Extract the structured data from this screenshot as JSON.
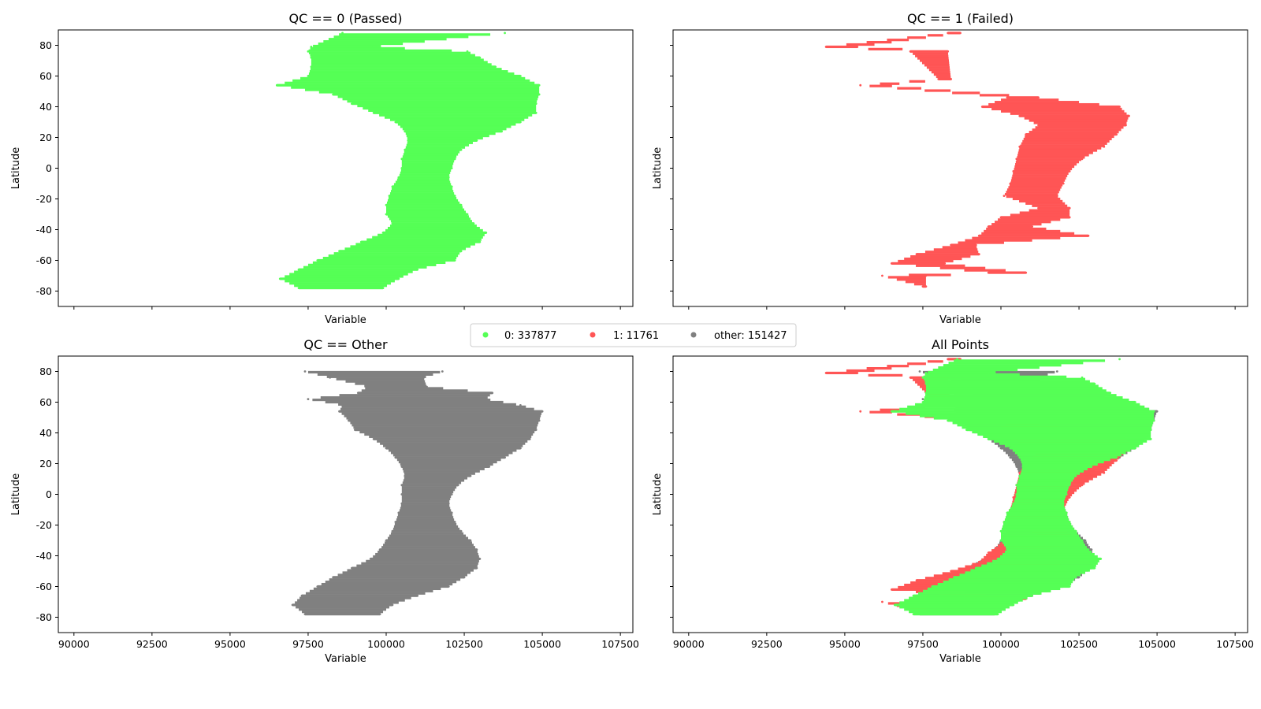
{
  "chart_data": [
    {
      "type": "scatter",
      "title": "QC == 0 (Passed)",
      "xlabel": "Variable",
      "ylabel": "Latitude",
      "xlim": [
        89500,
        107900
      ],
      "ylim": [
        -90,
        90
      ],
      "xticks": [
        90000,
        92500,
        95000,
        97500,
        100000,
        102500,
        105000,
        107500
      ],
      "yticks": [
        80,
        60,
        40,
        20,
        0,
        -20,
        -40,
        -60,
        -80
      ],
      "show_xtick_labels": false,
      "show_ytick_labels": true,
      "color": "#55ff55",
      "series": [
        {
          "label": "0",
          "color": "#55ff55",
          "profile": [
            {
              "lat": -78,
              "x": [
                97200,
                99900
              ]
            },
            {
              "lat": -72,
              "x": [
                96600,
                100400
              ]
            },
            {
              "lat": -66,
              "x": [
                97200,
                101000
              ]
            },
            {
              "lat": -60,
              "x": [
                97800,
                102200
              ]
            },
            {
              "lat": -54,
              "x": [
                98500,
                102400
              ]
            },
            {
              "lat": -48,
              "x": [
                99200,
                103000
              ]
            },
            {
              "lat": -42,
              "x": [
                99900,
                103200
              ]
            },
            {
              "lat": -36,
              "x": [
                100200,
                102800
              ]
            },
            {
              "lat": -30,
              "x": [
                100000,
                102600
              ]
            },
            {
              "lat": -24,
              "x": [
                100000,
                102400
              ]
            },
            {
              "lat": -18,
              "x": [
                100100,
                102200
              ]
            },
            {
              "lat": -12,
              "x": [
                100200,
                102100
              ]
            },
            {
              "lat": -6,
              "x": [
                100400,
                102000
              ]
            },
            {
              "lat": 0,
              "x": [
                100500,
                102100
              ]
            },
            {
              "lat": 6,
              "x": [
                100500,
                102200
              ]
            },
            {
              "lat": 12,
              "x": [
                100600,
                102400
              ]
            },
            {
              "lat": 18,
              "x": [
                100700,
                102900
              ]
            },
            {
              "lat": 24,
              "x": [
                100600,
                103700
              ]
            },
            {
              "lat": 30,
              "x": [
                100300,
                104300
              ]
            },
            {
              "lat": 36,
              "x": [
                99600,
                104800
              ]
            },
            {
              "lat": 42,
              "x": [
                98900,
                104800
              ]
            },
            {
              "lat": 48,
              "x": [
                98300,
                104900
              ]
            },
            {
              "lat": 54,
              "x": [
                96500,
                104900
              ]
            },
            {
              "lat": 60,
              "x": [
                97500,
                104300
              ]
            },
            {
              "lat": 66,
              "x": [
                97600,
                103500
              ]
            },
            {
              "lat": 72,
              "x": [
                97600,
                103000
              ]
            },
            {
              "lat": 76,
              "x": [
                97500,
                102600
              ]
            },
            {
              "lat": 79,
              "x": [
                97600,
                99600
              ]
            },
            {
              "lat": 88,
              "x": [
                98600,
                103800
              ]
            }
          ]
        }
      ]
    },
    {
      "type": "scatter",
      "title": "QC == 1 (Failed)",
      "xlabel": "Variable",
      "ylabel": "Latitude",
      "xlim": [
        89500,
        107900
      ],
      "ylim": [
        -90,
        90
      ],
      "xticks": [
        90000,
        92500,
        95000,
        97500,
        100000,
        102500,
        105000,
        107500
      ],
      "yticks": [
        80,
        60,
        40,
        20,
        0,
        -20,
        -40,
        -60,
        -80
      ],
      "show_xtick_labels": false,
      "show_ytick_labels": false,
      "color": "#ff5555",
      "series": [
        {
          "label": "1",
          "color": "#ff5555",
          "profile": [
            {
              "lat": -77,
              "x": [
                97500,
                97600
              ]
            },
            {
              "lat": -70,
              "x": [
                96200,
                97600
              ]
            },
            {
              "lat": -68,
              "x": [
                99600,
                100800
              ]
            },
            {
              "lat": -62,
              "x": [
                96500,
                98200
              ]
            },
            {
              "lat": -56,
              "x": [
                97300,
                99300
              ]
            },
            {
              "lat": -50,
              "x": [
                98400,
                99200
              ]
            },
            {
              "lat": -44,
              "x": [
                99300,
                102800
              ]
            },
            {
              "lat": -38,
              "x": [
                99600,
                101000
              ]
            },
            {
              "lat": -32,
              "x": [
                100000,
                102200
              ]
            },
            {
              "lat": -26,
              "x": [
                101200,
                102200
              ]
            },
            {
              "lat": -18,
              "x": [
                100100,
                101800
              ]
            },
            {
              "lat": -10,
              "x": [
                100300,
                102000
              ]
            },
            {
              "lat": -2,
              "x": [
                100400,
                102200
              ]
            },
            {
              "lat": 6,
              "x": [
                100500,
                102600
              ]
            },
            {
              "lat": 14,
              "x": [
                100600,
                103300
              ]
            },
            {
              "lat": 22,
              "x": [
                100800,
                103700
              ]
            },
            {
              "lat": 28,
              "x": [
                101200,
                104000
              ]
            },
            {
              "lat": 34,
              "x": [
                100600,
                104100
              ]
            },
            {
              "lat": 40,
              "x": [
                99400,
                103800
              ]
            },
            {
              "lat": 46,
              "x": [
                100200,
                101200
              ]
            },
            {
              "lat": 54,
              "x": [
                95500,
                96200
              ]
            },
            {
              "lat": 58,
              "x": [
                98000,
                98400
              ]
            },
            {
              "lat": 76,
              "x": [
                97100,
                98300
              ]
            },
            {
              "lat": 79,
              "x": [
                94400,
                95400
              ]
            },
            {
              "lat": 88,
              "x": [
                98300,
                98700
              ]
            }
          ]
        }
      ]
    },
    {
      "type": "scatter",
      "title": "QC == Other",
      "xlabel": "Variable",
      "ylabel": "Latitude",
      "xlim": [
        89500,
        107900
      ],
      "ylim": [
        -90,
        90
      ],
      "xticks": [
        90000,
        92500,
        95000,
        97500,
        100000,
        102500,
        105000,
        107500
      ],
      "yticks": [
        80,
        60,
        40,
        20,
        0,
        -20,
        -40,
        -60,
        -80
      ],
      "show_xtick_labels": true,
      "show_ytick_labels": true,
      "color": "#808080",
      "series": [
        {
          "label": "other",
          "color": "#808080",
          "profile": [
            {
              "lat": -78,
              "x": [
                97400,
                99800
              ]
            },
            {
              "lat": -72,
              "x": [
                97000,
                100200
              ]
            },
            {
              "lat": -66,
              "x": [
                97300,
                101000
              ]
            },
            {
              "lat": -60,
              "x": [
                97800,
                102000
              ]
            },
            {
              "lat": -54,
              "x": [
                98300,
                102500
              ]
            },
            {
              "lat": -48,
              "x": [
                98900,
                102900
              ]
            },
            {
              "lat": -42,
              "x": [
                99500,
                103000
              ]
            },
            {
              "lat": -36,
              "x": [
                99800,
                102900
              ]
            },
            {
              "lat": -30,
              "x": [
                100000,
                102700
              ]
            },
            {
              "lat": -24,
              "x": [
                100200,
                102400
              ]
            },
            {
              "lat": -18,
              "x": [
                100300,
                102200
              ]
            },
            {
              "lat": -12,
              "x": [
                100400,
                102100
              ]
            },
            {
              "lat": -6,
              "x": [
                100500,
                102000
              ]
            },
            {
              "lat": 0,
              "x": [
                100500,
                102100
              ]
            },
            {
              "lat": 6,
              "x": [
                100500,
                102300
              ]
            },
            {
              "lat": 12,
              "x": [
                100600,
                102700
              ]
            },
            {
              "lat": 18,
              "x": [
                100500,
                103300
              ]
            },
            {
              "lat": 24,
              "x": [
                100300,
                103800
              ]
            },
            {
              "lat": 30,
              "x": [
                100000,
                104300
              ]
            },
            {
              "lat": 36,
              "x": [
                99600,
                104600
              ]
            },
            {
              "lat": 42,
              "x": [
                99000,
                104800
              ]
            },
            {
              "lat": 48,
              "x": [
                98800,
                104900
              ]
            },
            {
              "lat": 54,
              "x": [
                98500,
                105000
              ]
            },
            {
              "lat": 58,
              "x": [
                98600,
                104300
              ]
            },
            {
              "lat": 62,
              "x": [
                97500,
                103200
              ]
            },
            {
              "lat": 66,
              "x": [
                99100,
                103400
              ]
            },
            {
              "lat": 70,
              "x": [
                99400,
                101300
              ]
            },
            {
              "lat": 76,
              "x": [
                98200,
                101200
              ]
            },
            {
              "lat": 80,
              "x": [
                97400,
                101800
              ]
            }
          ]
        }
      ]
    },
    {
      "type": "scatter",
      "title": "All Points",
      "xlabel": "Variable",
      "ylabel": "Latitude",
      "xlim": [
        89500,
        107900
      ],
      "ylim": [
        -90,
        90
      ],
      "xticks": [
        90000,
        92500,
        95000,
        97500,
        100000,
        102500,
        105000,
        107500
      ],
      "yticks": [
        80,
        60,
        40,
        20,
        0,
        -20,
        -40,
        -60,
        -80
      ],
      "show_xtick_labels": true,
      "show_ytick_labels": false,
      "series": [
        {
          "label": "other",
          "color": "#808080",
          "ref": 2
        },
        {
          "label": "1",
          "color": "#ff5555",
          "ref": 1
        },
        {
          "label": "0",
          "color": "#55ff55",
          "ref": 0
        }
      ]
    }
  ],
  "legend": {
    "placement": "center",
    "entries": [
      {
        "label": "0: 337877",
        "color": "#55ff55"
      },
      {
        "label": "1: 11761",
        "color": "#ff5555"
      },
      {
        "label": "other: 151427",
        "color": "#808080"
      }
    ]
  }
}
